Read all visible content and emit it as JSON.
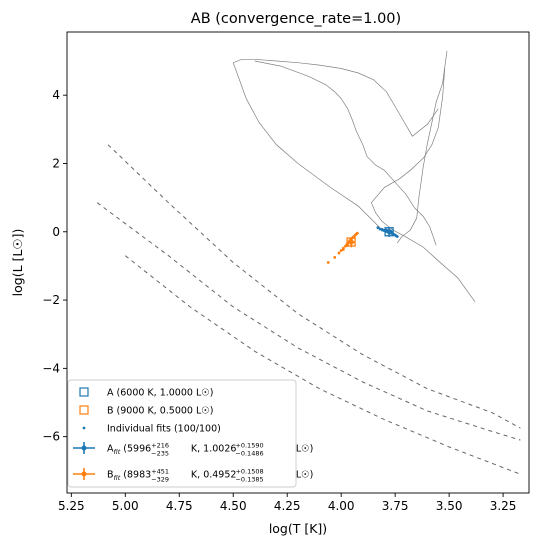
{
  "chart_data": {
    "type": "scatter",
    "title": "AB (convergence_rate=1.00)",
    "xlabel": "log(T [K])",
    "ylabel": "log(L [L☉])",
    "xlim": [
      5.27,
      3.13
    ],
    "ylim": [
      -7.65,
      5.85
    ],
    "x_inverted": true,
    "grid": false,
    "legend_placement": "lower-left",
    "x_ticks": [
      5.25,
      5.0,
      4.75,
      4.5,
      4.25,
      4.0,
      3.75,
      3.5,
      3.25
    ],
    "x_tick_labels": [
      "5.25",
      "5.00",
      "4.75",
      "4.50",
      "4.25",
      "4.00",
      "3.75",
      "3.50",
      "3.25"
    ],
    "y_ticks": [
      4,
      2,
      0,
      -2,
      -4,
      -6
    ],
    "y_tick_labels": [
      "4",
      "2",
      "0",
      "−2",
      "−4",
      "−6"
    ],
    "colors": {
      "A": "#1f77b4",
      "B": "#ff7f0e",
      "track": "#808080",
      "iso": "#666666"
    },
    "true_values": [
      {
        "name": "A",
        "logT": 3.778,
        "logL": 0.0,
        "marker": "open-square",
        "color": "#1f77b4"
      },
      {
        "name": "B",
        "logT": 3.954,
        "logL": -0.301,
        "marker": "open-square",
        "color": "#ff7f0e"
      }
    ],
    "fits": [
      {
        "name": "A",
        "logT": 3.778,
        "logL": 0.001,
        "xerr": [
          0.017,
          0.015
        ],
        "yerr": [
          0.15,
          0.14
        ],
        "color": "#1f77b4"
      },
      {
        "name": "B",
        "logT": 3.953,
        "logL": -0.305,
        "xerr": [
          0.016,
          0.021
        ],
        "yerr": [
          0.15,
          0.13
        ],
        "color": "#ff7f0e"
      }
    ],
    "individual_fits": {
      "A": [
        [
          3.83,
          0.12
        ],
        [
          3.82,
          0.08
        ],
        [
          3.81,
          0.07
        ],
        [
          3.81,
          0.05
        ],
        [
          3.8,
          0.04
        ],
        [
          3.8,
          0.03
        ],
        [
          3.79,
          0.02
        ],
        [
          3.79,
          0.01
        ],
        [
          3.785,
          0.0
        ],
        [
          3.78,
          -0.01
        ],
        [
          3.775,
          -0.02
        ],
        [
          3.77,
          -0.04
        ],
        [
          3.765,
          -0.05
        ],
        [
          3.76,
          -0.06
        ],
        [
          3.755,
          -0.08
        ],
        [
          3.75,
          -0.1
        ],
        [
          3.745,
          -0.12
        ],
        [
          3.74,
          -0.14
        ],
        [
          3.79,
          0.05
        ],
        [
          3.77,
          0.02
        ]
      ],
      "B": [
        [
          4.06,
          -0.9
        ],
        [
          4.03,
          -0.75
        ],
        [
          4.01,
          -0.62
        ],
        [
          4.0,
          -0.55
        ],
        [
          3.99,
          -0.48
        ],
        [
          3.98,
          -0.42
        ],
        [
          3.975,
          -0.38
        ],
        [
          3.97,
          -0.34
        ],
        [
          3.965,
          -0.3
        ],
        [
          3.96,
          -0.26
        ],
        [
          3.955,
          -0.22
        ],
        [
          3.95,
          -0.19
        ],
        [
          3.945,
          -0.16
        ],
        [
          3.94,
          -0.14
        ],
        [
          3.935,
          -0.1
        ],
        [
          3.93,
          -0.07
        ],
        [
          3.925,
          -0.04
        ],
        [
          3.99,
          -0.52
        ],
        [
          3.97,
          -0.4
        ],
        [
          3.955,
          -0.25
        ]
      ]
    },
    "evolution_tracks": [
      [
        [
          3.74,
          -0.33
        ],
        [
          3.72,
          -0.15
        ],
        [
          3.7,
          -0.05
        ],
        [
          3.68,
          0.05
        ],
        [
          3.65,
          0.4
        ],
        [
          3.64,
          1.0
        ],
        [
          3.62,
          1.9
        ],
        [
          3.6,
          2.6
        ],
        [
          3.58,
          3.2
        ],
        [
          3.56,
          3.8
        ],
        [
          3.53,
          4.35
        ],
        [
          3.51,
          5.3
        ]
      ],
      [
        [
          3.38,
          -2.05
        ],
        [
          3.46,
          -1.35
        ],
        [
          3.55,
          -0.85
        ],
        [
          3.62,
          -0.45
        ],
        [
          3.7,
          -0.15
        ],
        [
          3.76,
          0.05
        ],
        [
          3.81,
          0.3
        ],
        [
          3.84,
          0.55
        ],
        [
          3.86,
          0.85
        ],
        [
          3.8,
          1.3
        ],
        [
          3.73,
          1.55
        ],
        [
          3.68,
          1.8
        ],
        [
          3.62,
          2.15
        ],
        [
          3.58,
          2.55
        ],
        [
          3.55,
          3.05
        ],
        [
          3.53,
          3.95
        ],
        [
          3.52,
          4.8
        ]
      ],
      [
        [
          3.82,
          0.12
        ],
        [
          3.92,
          0.75
        ],
        [
          4.05,
          1.3
        ],
        [
          4.2,
          2.0
        ],
        [
          4.3,
          2.55
        ],
        [
          4.38,
          3.2
        ],
        [
          4.44,
          3.9
        ],
        [
          4.48,
          4.6
        ],
        [
          4.5,
          4.95
        ],
        [
          4.46,
          5.05
        ],
        [
          4.4,
          5.05
        ],
        [
          4.3,
          5.0
        ],
        [
          4.2,
          4.95
        ],
        [
          4.1,
          4.88
        ],
        [
          4.0,
          4.78
        ],
        [
          3.92,
          4.65
        ],
        [
          3.85,
          4.45
        ],
        [
          3.79,
          4.1
        ],
        [
          3.73,
          3.45
        ],
        [
          3.67,
          2.8
        ],
        [
          3.6,
          3.15
        ],
        [
          3.55,
          3.6
        ]
      ],
      [
        [
          3.56,
          -0.4
        ],
        [
          3.59,
          0.15
        ],
        [
          3.62,
          0.45
        ],
        [
          3.66,
          0.7
        ],
        [
          3.7,
          1.1
        ],
        [
          3.75,
          1.45
        ],
        [
          3.8,
          1.8
        ],
        [
          3.84,
          1.95
        ],
        [
          3.88,
          2.2
        ],
        [
          3.9,
          2.55
        ],
        [
          3.93,
          2.95
        ],
        [
          3.95,
          3.3
        ],
        [
          3.97,
          3.6
        ],
        [
          4.0,
          3.9
        ],
        [
          4.03,
          4.1
        ],
        [
          4.07,
          4.3
        ],
        [
          4.15,
          4.55
        ],
        [
          4.28,
          4.85
        ],
        [
          4.4,
          5.0
        ]
      ]
    ],
    "isochrones_dashed": [
      [
        [
          5.08,
          2.55
        ],
        [
          4.8,
          0.85
        ],
        [
          4.5,
          -0.9
        ],
        [
          4.2,
          -2.4
        ],
        [
          3.9,
          -3.6
        ],
        [
          3.6,
          -4.6
        ],
        [
          3.3,
          -5.3
        ],
        [
          3.17,
          -5.75
        ]
      ],
      [
        [
          5.13,
          0.85
        ],
        [
          4.8,
          -0.7
        ],
        [
          4.5,
          -2.2
        ],
        [
          4.2,
          -3.4
        ],
        [
          3.9,
          -4.4
        ],
        [
          3.6,
          -5.25
        ],
        [
          3.3,
          -5.85
        ],
        [
          3.17,
          -6.1
        ]
      ],
      [
        [
          5.0,
          -0.7
        ],
        [
          4.7,
          -2.2
        ],
        [
          4.4,
          -3.5
        ],
        [
          4.1,
          -4.6
        ],
        [
          3.8,
          -5.5
        ],
        [
          3.5,
          -6.3
        ],
        [
          3.17,
          -7.1
        ]
      ]
    ],
    "legend": [
      {
        "marker": "open-square",
        "color": "#1f77b4",
        "label": "A (6000 K, 1.0000 L☉)"
      },
      {
        "marker": "open-square",
        "color": "#ff7f0e",
        "label": "B (9000 K, 0.5000 L☉)"
      },
      {
        "marker": "dot",
        "color": "#1f77b4",
        "label": "Individual fits (100/100)"
      },
      {
        "marker": "errorbar",
        "color": "#1f77b4",
        "label_prefix": "A",
        "label_sub": "fit",
        "label_mid": " (5996",
        "t_up": "+216",
        "t_dn": "−235",
        "label_mid2": " K, 1.0026",
        "l_up": "+0.1590",
        "l_dn": "−0.1486",
        "label_end": " L☉)"
      },
      {
        "marker": "errorbar",
        "color": "#ff7f0e",
        "label_prefix": "B",
        "label_sub": "fit",
        "label_mid": " (8983",
        "t_up": "+451",
        "t_dn": "−329",
        "label_mid2": " K, 0.4952",
        "l_up": "+0.1508",
        "l_dn": "−0.1385",
        "label_end": " L☉)"
      }
    ]
  }
}
